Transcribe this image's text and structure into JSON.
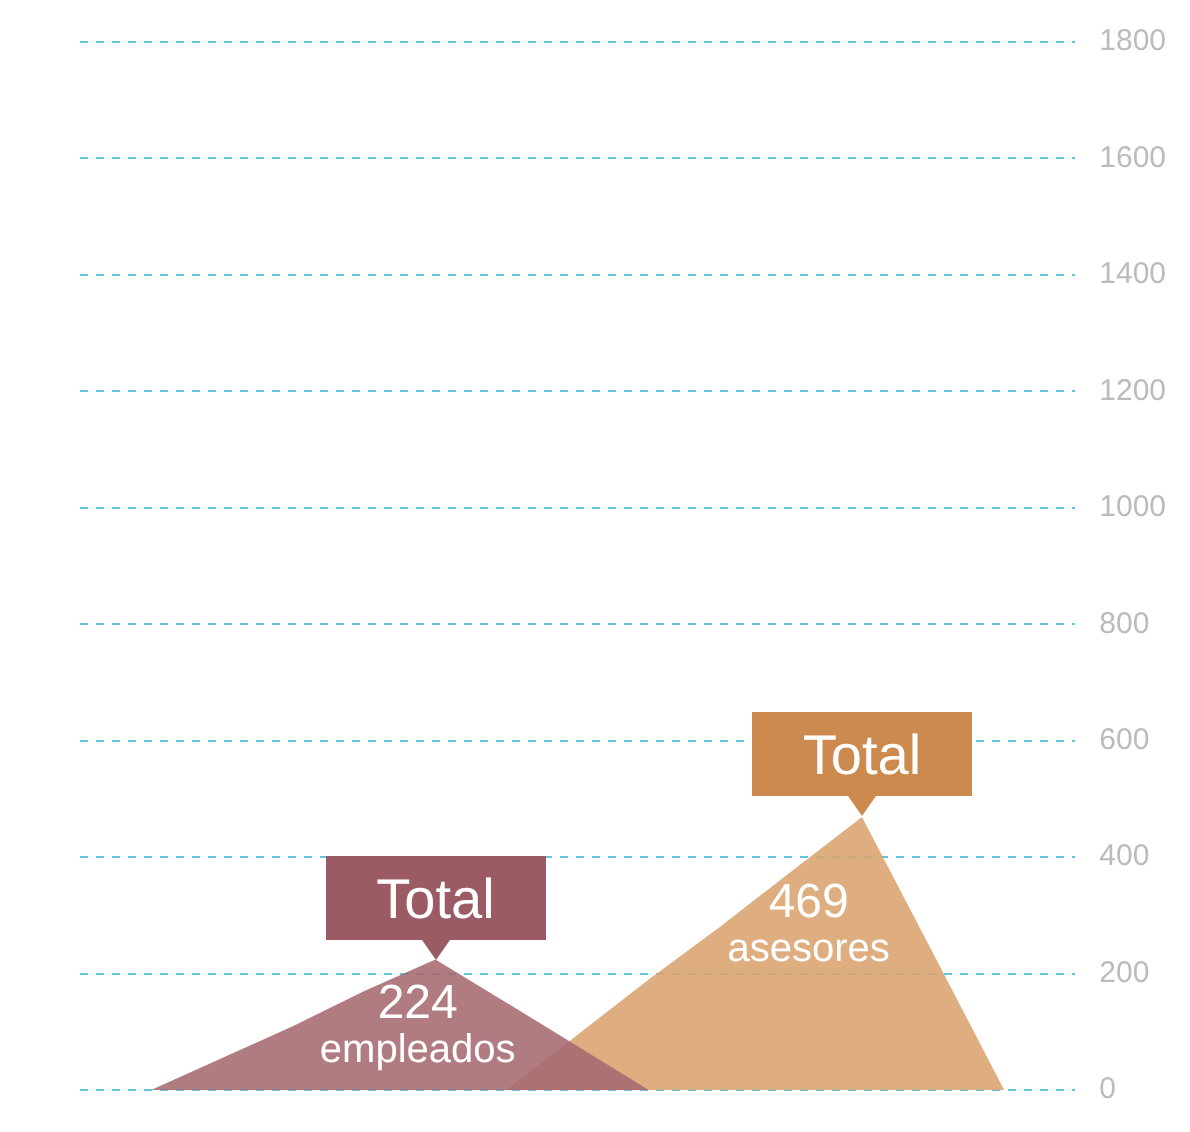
{
  "chart_data": {
    "type": "area",
    "categories": [
      null,
      null,
      null,
      null,
      null,
      null,
      null,
      null,
      null,
      null,
      null,
      null,
      null,
      null,
      null
    ],
    "series": [
      {
        "color": "#a5696f",
        "values": [
          null,
          0,
          55,
          110,
          170,
          224,
          150,
          75,
          0,
          null,
          null,
          null,
          null,
          null,
          null
        ],
        "value_labels": [
          null,
          null,
          null,
          null,
          null,
          "224\nempleados",
          null,
          null,
          null,
          null,
          null,
          null,
          null,
          null,
          null
        ]
      },
      {
        "color": "#d9a26e",
        "values": [
          null,
          null,
          null,
          null,
          null,
          null,
          0,
          95,
          190,
          280,
          375,
          469,
          235,
          0,
          null
        ],
        "value_labels": [
          null,
          null,
          null,
          null,
          null,
          null,
          null,
          null,
          null,
          null,
          null,
          "469\nasesores",
          null,
          null,
          null
        ]
      }
    ],
    "annotations": [
      "Total",
      "Total"
    ],
    "tick_labels": "y",
    "marker": "none",
    "ylim": [
      0,
      1800
    ],
    "yticks": [
      0,
      200,
      400,
      600,
      800,
      1000,
      1200,
      1400,
      1600,
      1800
    ],
    "grid": "y",
    "legend": false
  }
}
